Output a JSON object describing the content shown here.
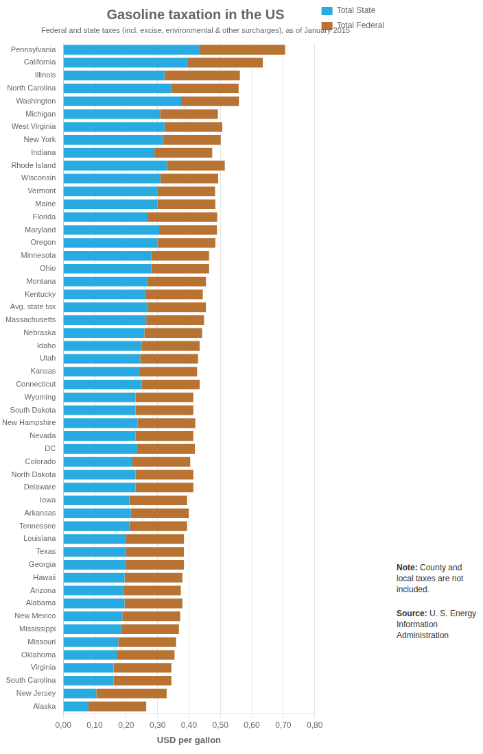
{
  "chart_data": {
    "type": "bar",
    "orientation": "horizontal",
    "stacked": true,
    "title": "Gasoline taxation in the US",
    "subtitle": "Federal and state taxes (incl. excise, environmental & other surcharges), as of January 2015",
    "xlabel": "USD per gallon",
    "categories": [
      "Pennsylvania",
      "California",
      "Illinois",
      "North Carolina",
      "Washington",
      "Michigan",
      "West Virginia",
      "New York",
      "Indiana",
      "Rhode Island",
      "Wisconsin",
      "Vermont",
      "Maine",
      "Florida",
      "Maryland",
      "Oregon",
      "Minnesota",
      "Ohio",
      "Montana",
      "Kentucky",
      "Avg. state tax",
      "Massachusetts",
      "Nebraska",
      "Idaho",
      "Utah",
      "Kansas",
      "Connecticut",
      "Wyoming",
      "South Dakota",
      "New Hampshire",
      "Nevada",
      "DC",
      "Colorado",
      "North Dakota",
      "Delaware",
      "Iowa",
      "Arkansas",
      "Tennessee",
      "Louisiana",
      "Texas",
      "Georgia",
      "Hawaii",
      "Arizona",
      "Alabama",
      "New Mexico",
      "Mississippi",
      "Missouri",
      "Oklahoma",
      "Virginia",
      "South Carolina",
      "New Jersey",
      "Alaska"
    ],
    "series": [
      {
        "name": "Total State",
        "color": "#29ABE2",
        "values": [
          0.432,
          0.395,
          0.322,
          0.343,
          0.375,
          0.308,
          0.322,
          0.317,
          0.29,
          0.33,
          0.309,
          0.299,
          0.3,
          0.268,
          0.305,
          0.3,
          0.28,
          0.28,
          0.27,
          0.26,
          0.27,
          0.264,
          0.258,
          0.25,
          0.245,
          0.242,
          0.25,
          0.23,
          0.23,
          0.236,
          0.23,
          0.235,
          0.22,
          0.23,
          0.23,
          0.21,
          0.215,
          0.21,
          0.2,
          0.2,
          0.2,
          0.195,
          0.19,
          0.195,
          0.188,
          0.184,
          0.175,
          0.17,
          0.16,
          0.16,
          0.105,
          0.08
        ]
      },
      {
        "name": "Total Federal",
        "color": "#B87333",
        "values": [
          0.274,
          0.24,
          0.24,
          0.215,
          0.184,
          0.184,
          0.184,
          0.184,
          0.184,
          0.184,
          0.184,
          0.184,
          0.184,
          0.222,
          0.184,
          0.184,
          0.184,
          0.184,
          0.184,
          0.184,
          0.184,
          0.184,
          0.184,
          0.184,
          0.184,
          0.184,
          0.184,
          0.184,
          0.184,
          0.184,
          0.184,
          0.184,
          0.184,
          0.184,
          0.184,
          0.184,
          0.184,
          0.184,
          0.184,
          0.184,
          0.184,
          0.184,
          0.184,
          0.184,
          0.184,
          0.184,
          0.184,
          0.184,
          0.184,
          0.184,
          0.224,
          0.184
        ]
      }
    ],
    "xlim": [
      0,
      0.8
    ],
    "xticks": [
      {
        "value": 0.0,
        "label": "0,00"
      },
      {
        "value": 0.1,
        "label": "0,10"
      },
      {
        "value": 0.2,
        "label": "0,20"
      },
      {
        "value": 0.3,
        "label": "0,30"
      },
      {
        "value": 0.4,
        "label": "0,40"
      },
      {
        "value": 0.5,
        "label": "0,50"
      },
      {
        "value": 0.6,
        "label": "0,60"
      },
      {
        "value": 0.7,
        "label": "0,70"
      },
      {
        "value": 0.8,
        "label": "0,80"
      }
    ],
    "grid": true,
    "legend": "right",
    "annotations": [
      "Note: County and\nlocal taxes are not\nincluded.",
      "Source: U. S. Energy\nInformation\nAdministration"
    ]
  }
}
